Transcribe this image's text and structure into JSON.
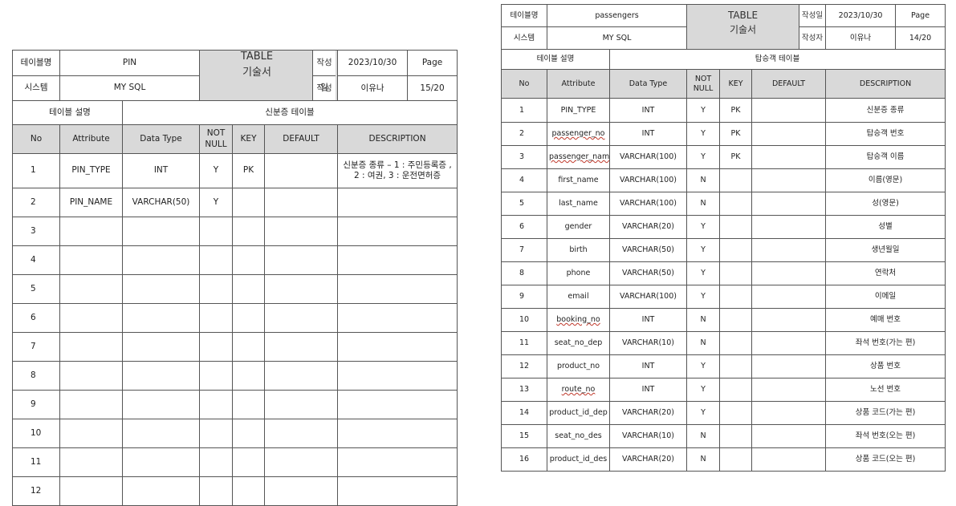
{
  "left_doc": {
    "labels": {
      "table_name": "테이블명",
      "system": "시스템",
      "table_desc": "테이블 설명",
      "written_date": "작성일",
      "author": "작성자",
      "page": "Page"
    },
    "table_name": "PIN",
    "system": "MY SQL",
    "doc_title_1": "TABLE",
    "doc_title_2": "기술서",
    "date": "2023/10/30",
    "author": "이유나",
    "page_no": "15/20",
    "table_desc": "신분증 테이블",
    "columns": [
      "No",
      "Attribute",
      "Data Type",
      "NOT NULL",
      "KEY",
      "DEFAULT",
      "DESCRIPTION"
    ],
    "rows": [
      {
        "no": "1",
        "attr": "PIN_TYPE",
        "type": "INT",
        "nn": "Y",
        "key": "PK",
        "def": "",
        "desc": "신분증 종류 – 1 : 주민등록증 , 2 : 여권, 3 : 운전면허증"
      },
      {
        "no": "2",
        "attr": "PIN_NAME",
        "type": "VARCHAR(50)",
        "nn": "Y",
        "key": "",
        "def": "",
        "desc": ""
      },
      {
        "no": "3",
        "attr": "",
        "type": "",
        "nn": "",
        "key": "",
        "def": "",
        "desc": ""
      },
      {
        "no": "4",
        "attr": "",
        "type": "",
        "nn": "",
        "key": "",
        "def": "",
        "desc": ""
      },
      {
        "no": "5",
        "attr": "",
        "type": "",
        "nn": "",
        "key": "",
        "def": "",
        "desc": ""
      },
      {
        "no": "6",
        "attr": "",
        "type": "",
        "nn": "",
        "key": "",
        "def": "",
        "desc": ""
      },
      {
        "no": "7",
        "attr": "",
        "type": "",
        "nn": "",
        "key": "",
        "def": "",
        "desc": ""
      },
      {
        "no": "8",
        "attr": "",
        "type": "",
        "nn": "",
        "key": "",
        "def": "",
        "desc": ""
      },
      {
        "no": "9",
        "attr": "",
        "type": "",
        "nn": "",
        "key": "",
        "def": "",
        "desc": ""
      },
      {
        "no": "10",
        "attr": "",
        "type": "",
        "nn": "",
        "key": "",
        "def": "",
        "desc": ""
      },
      {
        "no": "11",
        "attr": "",
        "type": "",
        "nn": "",
        "key": "",
        "def": "",
        "desc": ""
      },
      {
        "no": "12",
        "attr": "",
        "type": "",
        "nn": "",
        "key": "",
        "def": "",
        "desc": ""
      }
    ]
  },
  "right_doc": {
    "labels": {
      "table_name": "테이블명",
      "system": "시스템",
      "table_desc": "테이블 설명",
      "written_date": "작성일",
      "author": "작성자",
      "page": "Page"
    },
    "table_name": "passengers",
    "system": "MY SQL",
    "doc_title_1": "TABLE",
    "doc_title_2": "기술서",
    "date": "2023/10/30",
    "author": "이유나",
    "page_no": "14/20",
    "table_desc": "탑승객 테이블",
    "columns": [
      "No",
      "Attribute",
      "Data Type",
      "NOT NULL",
      "KEY",
      "DEFAULT",
      "DESCRIPTION"
    ],
    "rows": [
      {
        "no": "1",
        "attr": "PIN_TYPE",
        "type": "INT",
        "nn": "Y",
        "key": "PK",
        "def": "",
        "desc": "신분증 종류"
      },
      {
        "no": "2",
        "attr": "passenger_no",
        "type": "INT",
        "nn": "Y",
        "key": "PK",
        "def": "",
        "desc": "탑승객 번호"
      },
      {
        "no": "3",
        "attr": "passenger_name",
        "type": "VARCHAR(100)",
        "nn": "Y",
        "key": "PK",
        "def": "",
        "desc": "탑승객 이름"
      },
      {
        "no": "4",
        "attr": "first_name",
        "type": "VARCHAR(100)",
        "nn": "N",
        "key": "",
        "def": "",
        "desc": "이름(영문)"
      },
      {
        "no": "5",
        "attr": "last_name",
        "type": "VARCHAR(100)",
        "nn": "N",
        "key": "",
        "def": "",
        "desc": "성(영문)"
      },
      {
        "no": "6",
        "attr": "gender",
        "type": "VARCHAR(20)",
        "nn": "Y",
        "key": "",
        "def": "",
        "desc": "성별"
      },
      {
        "no": "7",
        "attr": "birth",
        "type": "VARCHAR(50)",
        "nn": "Y",
        "key": "",
        "def": "",
        "desc": "생년월일"
      },
      {
        "no": "8",
        "attr": "phone",
        "type": "VARCHAR(50)",
        "nn": "Y",
        "key": "",
        "def": "",
        "desc": "연락처"
      },
      {
        "no": "9",
        "attr": "email",
        "type": "VARCHAR(100)",
        "nn": "Y",
        "key": "",
        "def": "",
        "desc": "이메일"
      },
      {
        "no": "10",
        "attr": "booking_no",
        "type": "INT",
        "nn": "N",
        "key": "",
        "def": "",
        "desc": "예매 번호"
      },
      {
        "no": "11",
        "attr": "seat_no_dep",
        "type": "VARCHAR(10)",
        "nn": "N",
        "key": "",
        "def": "",
        "desc": "좌석 번호(가는 편)"
      },
      {
        "no": "12",
        "attr": "product_no",
        "type": "INT",
        "nn": "Y",
        "key": "",
        "def": "",
        "desc": "상품 번호"
      },
      {
        "no": "13",
        "attr": "route_no",
        "type": "INT",
        "nn": "Y",
        "key": "",
        "def": "",
        "desc": "노선 번호"
      },
      {
        "no": "14",
        "attr": "product_id_dep",
        "type": "VARCHAR(20)",
        "nn": "Y",
        "key": "",
        "def": "",
        "desc": "상품 코드(가는 편)"
      },
      {
        "no": "15",
        "attr": "seat_no_des",
        "type": "VARCHAR(10)",
        "nn": "N",
        "key": "",
        "def": "",
        "desc": "좌석 번호(오는 편)"
      },
      {
        "no": "16",
        "attr": "product_id_des",
        "type": "VARCHAR(20)",
        "nn": "N",
        "key": "",
        "def": "",
        "desc": "상품 코드(오는 편)"
      }
    ]
  }
}
